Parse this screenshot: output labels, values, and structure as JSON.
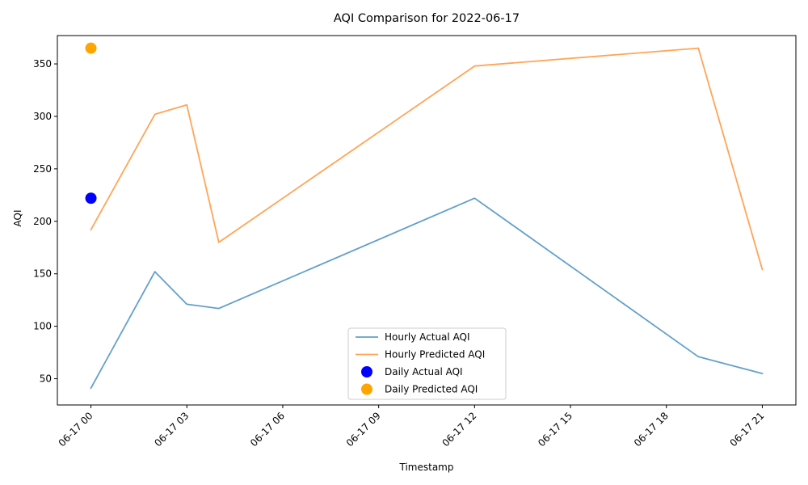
{
  "chart_data": {
    "type": "line",
    "title": "AQI Comparison for 2022-06-17",
    "xlabel": "Timestamp",
    "ylabel": "AQI",
    "ylim": [
      25,
      377
    ],
    "xlim_hours": [
      -1.05,
      22.05
    ],
    "x_ticks": [
      {
        "hour": 0,
        "label": "06-17 00"
      },
      {
        "hour": 3,
        "label": "06-17 03"
      },
      {
        "hour": 6,
        "label": "06-17 06"
      },
      {
        "hour": 9,
        "label": "06-17 09"
      },
      {
        "hour": 12,
        "label": "06-17 12"
      },
      {
        "hour": 15,
        "label": "06-17 15"
      },
      {
        "hour": 18,
        "label": "06-17 18"
      },
      {
        "hour": 21,
        "label": "06-17 21"
      }
    ],
    "y_ticks": [
      50,
      100,
      150,
      200,
      250,
      300,
      350
    ],
    "grid": false,
    "legend_position": "bottom-center",
    "series": [
      {
        "name": "Hourly Actual AQI",
        "kind": "line",
        "color": "#1f77b4",
        "x_hours": [
          0,
          2,
          3,
          4,
          12,
          19,
          21
        ],
        "values": [
          41,
          152,
          121,
          117,
          222,
          71,
          55
        ]
      },
      {
        "name": "Hourly Predicted AQI",
        "kind": "line",
        "color": "#ff7f0e",
        "x_hours": [
          0,
          2,
          3,
          4,
          12,
          19,
          21
        ],
        "values": [
          192,
          302,
          311,
          180,
          348,
          365,
          154
        ]
      },
      {
        "name": "Daily Actual AQI",
        "kind": "scatter",
        "color": "#0000ff",
        "x_hours": [
          0
        ],
        "values": [
          222
        ]
      },
      {
        "name": "Daily Predicted AQI",
        "kind": "scatter",
        "color": "#ffa500",
        "x_hours": [
          0
        ],
        "values": [
          365
        ]
      }
    ]
  }
}
